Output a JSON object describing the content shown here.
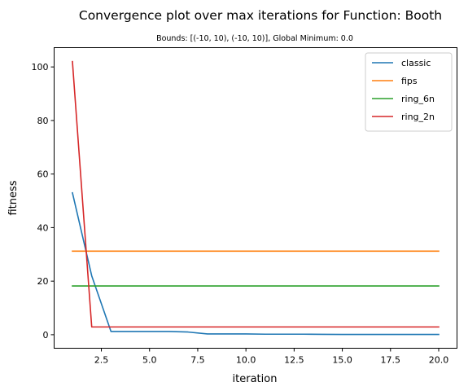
{
  "chart_data": {
    "type": "line",
    "title": "Convergence plot over max iterations for Function: Booth",
    "subtitle": "Bounds: [(-10, 10), (-10, 10)], Global Minimum: 0.0",
    "xlabel": "iteration",
    "ylabel": "fitness",
    "xlim": [
      0.05,
      20.95
    ],
    "ylim": [
      -5.05,
      107.2
    ],
    "grid": false,
    "legend_position": "top-right",
    "x": [
      1,
      2,
      3,
      4,
      5,
      6,
      7,
      8,
      9,
      10,
      11,
      12,
      13,
      14,
      15,
      16,
      17,
      18,
      19,
      20
    ],
    "x_ticks": [
      2.5,
      5.0,
      7.5,
      10.0,
      12.5,
      15.0,
      17.5,
      20.0
    ],
    "x_tick_labels": [
      "2.5",
      "5.0",
      "7.5",
      "10.0",
      "12.5",
      "15.0",
      "17.5",
      "20.0"
    ],
    "y_ticks": [
      0,
      20,
      40,
      60,
      80,
      100
    ],
    "y_tick_labels": [
      "0",
      "20",
      "40",
      "60",
      "80",
      "100"
    ],
    "series": [
      {
        "name": "classic",
        "color": "#1f77b4",
        "values": [
          53.0,
          22.0,
          1.2,
          1.2,
          1.2,
          1.2,
          1.0,
          0.3,
          0.3,
          0.3,
          0.2,
          0.2,
          0.2,
          0.15,
          0.1,
          0.1,
          0.1,
          0.1,
          0.1,
          0.1
        ]
      },
      {
        "name": "fips",
        "color": "#ff7f0e",
        "values": [
          31.2,
          31.2,
          31.2,
          31.2,
          31.2,
          31.2,
          31.2,
          31.2,
          31.2,
          31.2,
          31.2,
          31.2,
          31.2,
          31.2,
          31.2,
          31.2,
          31.2,
          31.2,
          31.2,
          31.2
        ]
      },
      {
        "name": "ring_6n",
        "color": "#2ca02c",
        "values": [
          18.2,
          18.2,
          18.2,
          18.2,
          18.2,
          18.2,
          18.2,
          18.2,
          18.2,
          18.2,
          18.2,
          18.2,
          18.2,
          18.2,
          18.2,
          18.2,
          18.2,
          18.2,
          18.2,
          18.2
        ]
      },
      {
        "name": "ring_2n",
        "color": "#d62728",
        "values": [
          102.0,
          2.9,
          2.9,
          2.9,
          2.9,
          2.9,
          2.9,
          2.9,
          2.9,
          2.9,
          2.9,
          2.9,
          2.9,
          2.9,
          2.9,
          2.9,
          2.9,
          2.9,
          2.9,
          2.9
        ]
      }
    ]
  }
}
